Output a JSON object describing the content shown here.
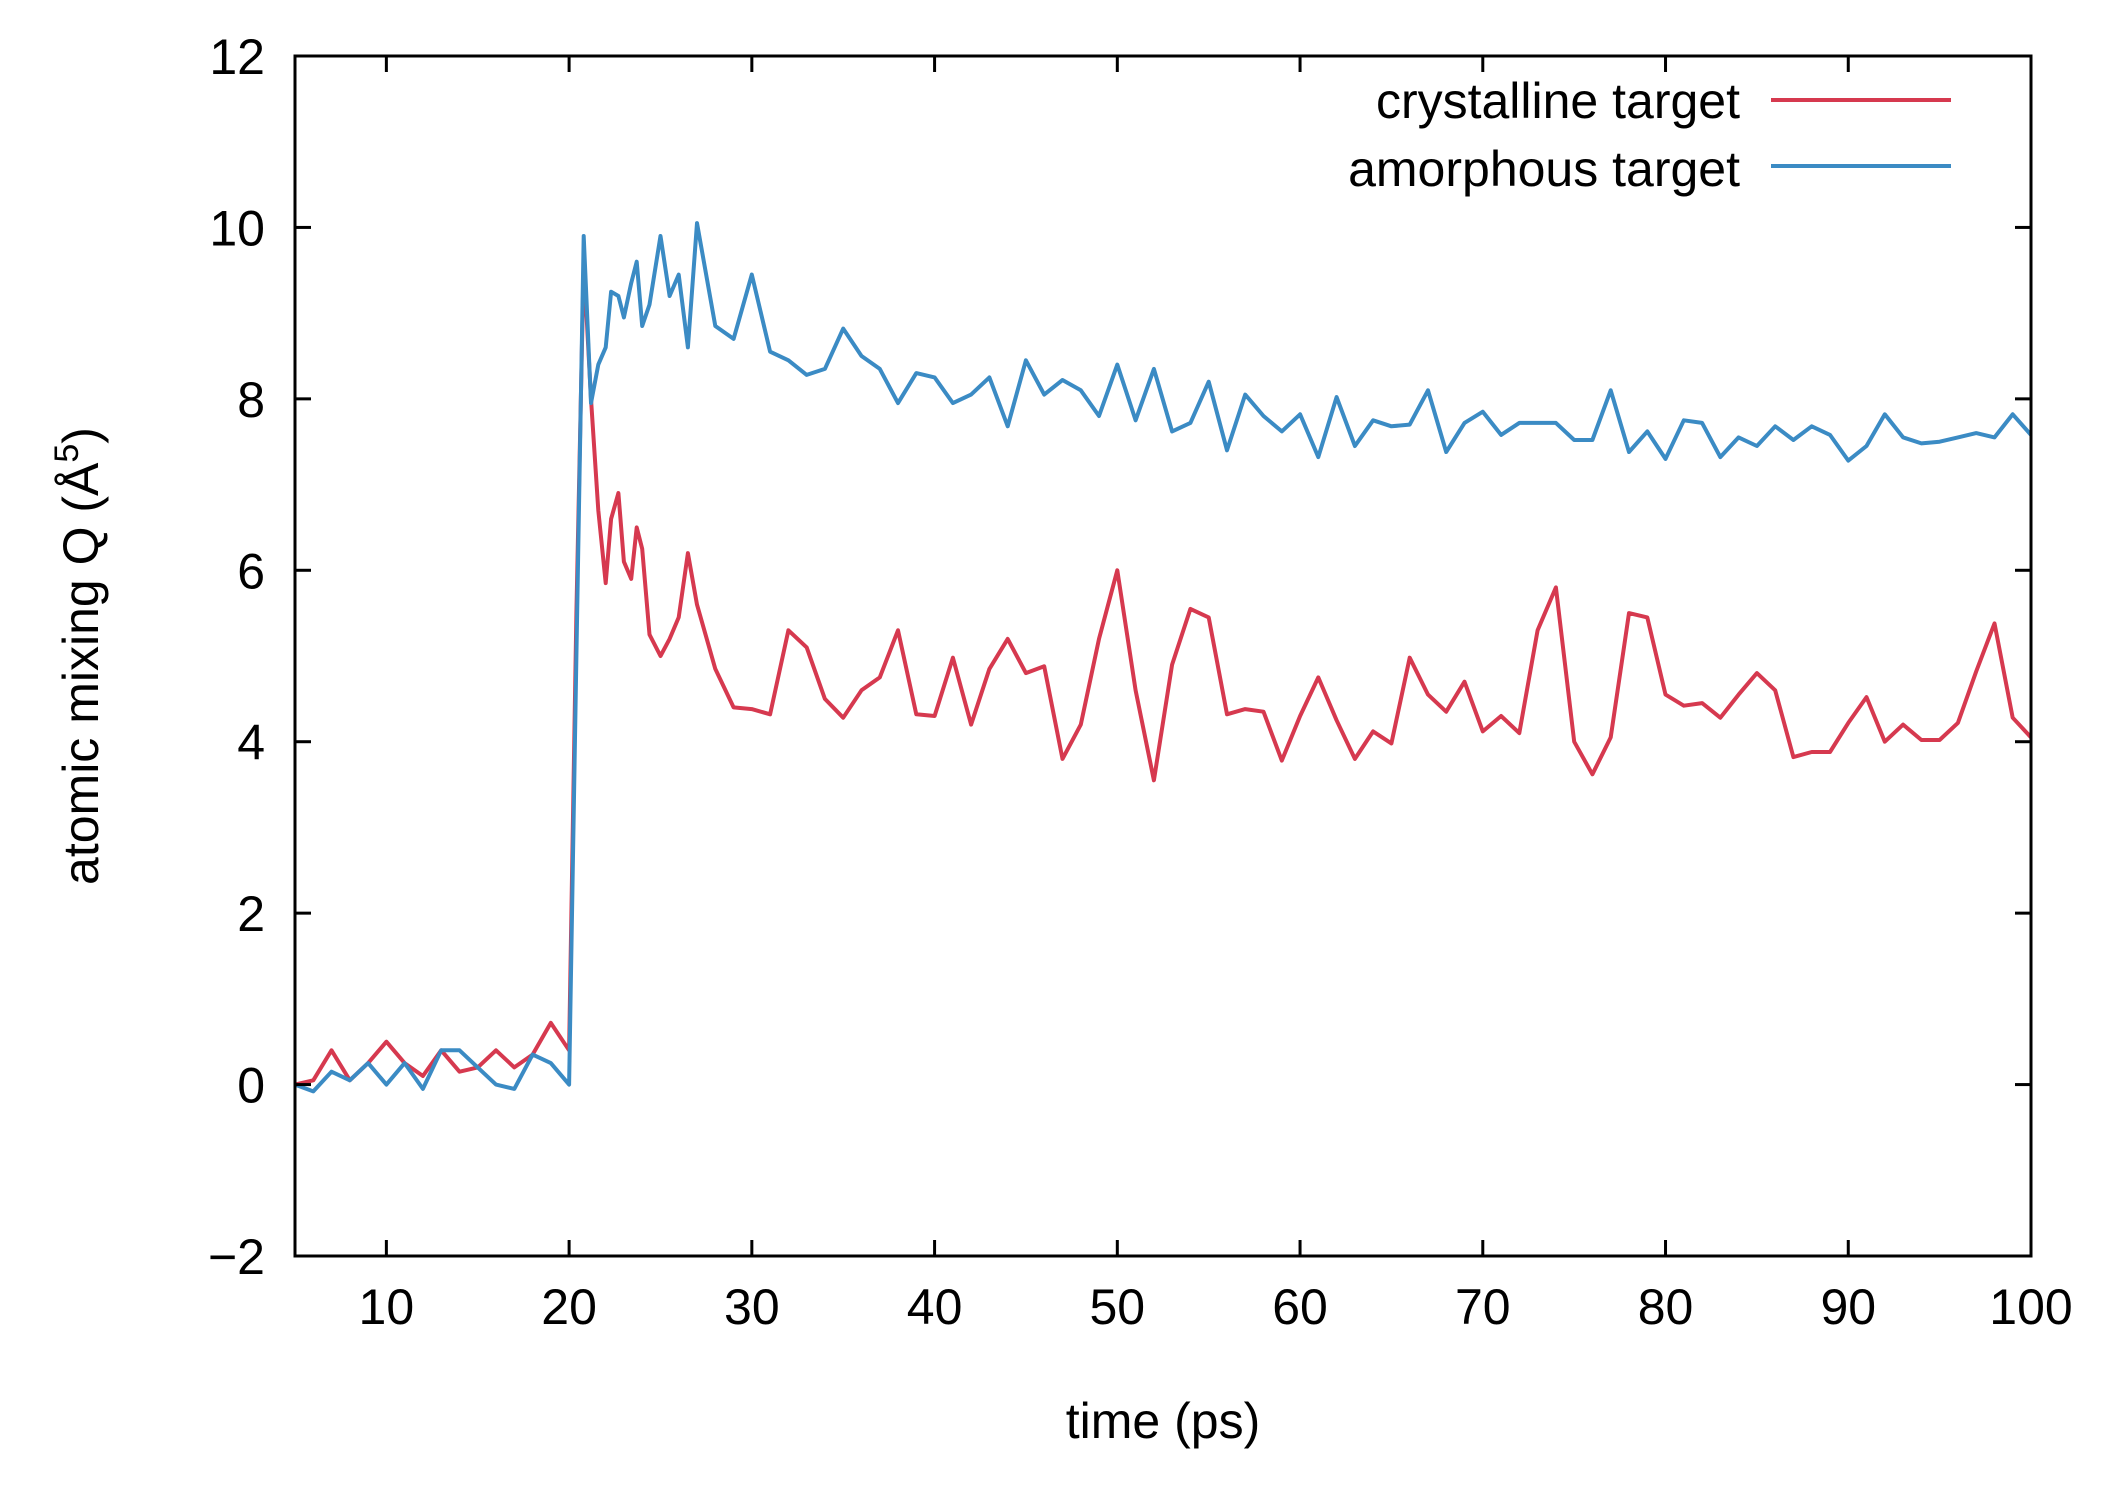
{
  "chart_data": {
    "type": "line",
    "title": "",
    "xlabel": "time (ps)",
    "ylabel": "atomic mixing Q (Å",
    "ylabel_sup": "5",
    "ylabel_close": ")",
    "xlim": [
      5,
      100
    ],
    "ylim": [
      -2,
      12
    ],
    "x_ticks": [
      10,
      20,
      30,
      40,
      50,
      60,
      70,
      80,
      90,
      100
    ],
    "x_tick_labels": [
      "10",
      "20",
      "30",
      "40",
      "50",
      "60",
      "70",
      "80",
      "90",
      "100"
    ],
    "y_ticks": [
      -2,
      0,
      2,
      4,
      6,
      8,
      10,
      12
    ],
    "y_tick_labels": [
      "−2",
      "0",
      "2",
      "4",
      "6",
      "8",
      "10",
      "12"
    ],
    "legend_position": "top-right",
    "series": [
      {
        "name": "crystalline target",
        "color": "#d6394f",
        "x": [
          5,
          6,
          7,
          8,
          9,
          10,
          11,
          12,
          13,
          14,
          15,
          16,
          17,
          18,
          19,
          20,
          20.4,
          20.8,
          21.2,
          21.6,
          22,
          22.3,
          22.7,
          23,
          23.4,
          23.7,
          24,
          24.4,
          25,
          25.5,
          26,
          26.5,
          27,
          28,
          29,
          30,
          31,
          32,
          33,
          34,
          35,
          36,
          37,
          38,
          39,
          40,
          41,
          42,
          43,
          44,
          45,
          46,
          47,
          48,
          49,
          50,
          51,
          52,
          53,
          54,
          55,
          56,
          57,
          58,
          59,
          60,
          61,
          62,
          63,
          64,
          65,
          66,
          67,
          68,
          69,
          70,
          71,
          72,
          73,
          74,
          75,
          76,
          77,
          78,
          79,
          80,
          81,
          82,
          83,
          84,
          85,
          86,
          87,
          88,
          89,
          90,
          91,
          92,
          93,
          94,
          95,
          96,
          97,
          98,
          99,
          100
        ],
        "values": [
          0,
          0.05,
          0.4,
          0.05,
          0.25,
          0.5,
          0.25,
          0.1,
          0.4,
          0.15,
          0.2,
          0.4,
          0.2,
          0.35,
          0.72,
          0.4,
          5.5,
          9.6,
          8.0,
          6.7,
          5.85,
          6.6,
          6.9,
          6.1,
          5.9,
          6.5,
          6.25,
          5.25,
          5.0,
          5.2,
          5.45,
          6.2,
          5.6,
          4.85,
          4.4,
          4.38,
          4.32,
          5.3,
          5.1,
          4.5,
          4.28,
          4.6,
          4.75,
          5.3,
          4.32,
          4.3,
          4.98,
          4.2,
          4.85,
          5.2,
          4.8,
          4.88,
          3.8,
          4.2,
          5.2,
          6.0,
          4.6,
          3.55,
          4.9,
          5.55,
          5.45,
          4.32,
          4.38,
          4.35,
          3.78,
          4.3,
          4.75,
          4.25,
          3.8,
          4.12,
          3.98,
          4.98,
          4.55,
          4.35,
          4.7,
          4.12,
          4.3,
          4.1,
          5.3,
          5.8,
          4.0,
          3.62,
          4.05,
          5.5,
          5.45,
          4.55,
          4.42,
          4.45,
          4.28,
          4.55,
          4.8,
          4.6,
          3.82,
          3.88,
          3.88,
          4.22,
          4.52,
          4.0,
          4.2,
          4.02,
          4.02,
          4.22,
          4.82,
          5.38,
          4.28,
          4.05
        ]
      },
      {
        "name": "amorphous target",
        "color": "#3b8bc4",
        "x": [
          5,
          6,
          7,
          8,
          9,
          10,
          11,
          12,
          13,
          14,
          15,
          16,
          17,
          18,
          19,
          20,
          20.4,
          20.8,
          21.2,
          21.6,
          22,
          22.3,
          22.7,
          23,
          23.4,
          23.7,
          24,
          24.4,
          25,
          25.5,
          26,
          26.5,
          27,
          28,
          29,
          30,
          31,
          32,
          33,
          34,
          35,
          36,
          37,
          38,
          39,
          40,
          41,
          42,
          43,
          44,
          45,
          46,
          47,
          48,
          49,
          50,
          51,
          52,
          53,
          54,
          55,
          56,
          57,
          58,
          59,
          60,
          61,
          62,
          63,
          64,
          65,
          66,
          67,
          68,
          69,
          70,
          71,
          72,
          73,
          74,
          75,
          76,
          77,
          78,
          79,
          80,
          81,
          82,
          83,
          84,
          85,
          86,
          87,
          88,
          89,
          90,
          91,
          92,
          93,
          94,
          95,
          96,
          97,
          98,
          99,
          100
        ],
        "values": [
          0,
          -0.08,
          0.15,
          0.05,
          0.25,
          0.0,
          0.25,
          -0.05,
          0.4,
          0.4,
          0.2,
          0.0,
          -0.05,
          0.35,
          0.25,
          0.0,
          5.0,
          9.9,
          7.95,
          8.4,
          8.6,
          9.25,
          9.2,
          8.95,
          9.35,
          9.6,
          8.85,
          9.1,
          9.9,
          9.2,
          9.45,
          8.6,
          10.05,
          8.85,
          8.7,
          9.45,
          8.55,
          8.45,
          8.28,
          8.35,
          8.82,
          8.5,
          8.35,
          7.95,
          8.3,
          8.25,
          7.95,
          8.05,
          8.25,
          7.68,
          8.45,
          8.05,
          8.22,
          8.1,
          7.8,
          8.4,
          7.75,
          8.35,
          7.62,
          7.72,
          8.2,
          7.4,
          8.05,
          7.8,
          7.62,
          7.82,
          7.32,
          8.02,
          7.45,
          7.75,
          7.68,
          7.7,
          8.1,
          7.38,
          7.72,
          7.85,
          7.58,
          7.72,
          7.72,
          7.72,
          7.52,
          7.52,
          8.1,
          7.38,
          7.62,
          7.3,
          7.75,
          7.72,
          7.32,
          7.55,
          7.45,
          7.68,
          7.52,
          7.68,
          7.58,
          7.28,
          7.45,
          7.82,
          7.55,
          7.48,
          7.5,
          7.55,
          7.6,
          7.55,
          7.82,
          7.58
        ]
      }
    ]
  }
}
